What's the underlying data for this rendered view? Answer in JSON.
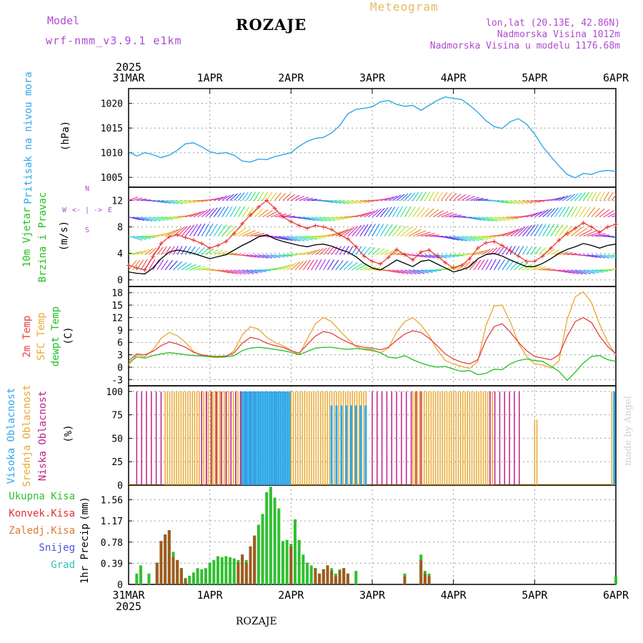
{
  "header": {
    "model_label": "Model",
    "model_run": "wrf-nmm_v3.9.1 e1km",
    "station": "ROZAJE",
    "product": "Meteogram",
    "lonlat": "lon,lat (20.13E, 42.86N)",
    "altitude": "Nadmorska Visina 1012m",
    "model_altitude": "Nadmorska Visina u modelu 1176.68m"
  },
  "watermark": "made by Angel",
  "footer": {
    "station": "ROZAJE"
  },
  "colors": {
    "pressure": "#2ea8e8",
    "wind_speed": "#000000",
    "wind_gust": "#e83030",
    "temp2m": "#e84040",
    "sfc_temp": "#e8a830",
    "dewpoint": "#20c020",
    "high_cloud": "#2ea8e8",
    "mid_cloud": "#e8a830",
    "low_cloud": "#c0208a",
    "total_precip": "#30c030",
    "convective_precip": "#a05a20",
    "snow": "#5050e0",
    "grad": "#30c0c0"
  },
  "chart_data": [
    {
      "type": "line",
      "name": "pressure",
      "xticks_top": [
        "31MAR",
        "1APR",
        "2APR",
        "3APR",
        "4APR",
        "5APR",
        "6APR"
      ],
      "year": "2025",
      "ylabel": "Pritisak na nivou mora",
      "unit": "(hPa)",
      "yticks": [
        "1005",
        "1010",
        "1015",
        "1020"
      ],
      "ylim": [
        1003,
        1023
      ],
      "x_days": [
        0,
        0.1,
        0.2,
        0.3,
        0.4,
        0.5,
        0.6,
        0.7,
        0.8,
        0.9,
        1.0,
        1.1,
        1.2,
        1.3,
        1.4,
        1.5,
        1.6,
        1.7,
        1.8,
        1.9,
        2.0,
        2.1,
        2.2,
        2.3,
        2.4,
        2.5,
        2.6,
        2.7,
        2.8,
        2.9,
        3.0,
        3.1,
        3.2,
        3.3,
        3.4,
        3.5,
        3.6,
        3.7,
        3.8,
        3.9,
        4.0,
        4.1,
        4.2,
        4.3,
        4.4,
        4.5,
        4.6,
        4.7,
        4.8,
        4.9,
        5.0,
        5.1,
        5.2,
        5.3,
        5.4,
        5.5,
        5.6,
        5.7,
        5.8,
        5.9,
        6.0
      ],
      "values": [
        1010.2,
        1009.3,
        1010.0,
        1009.6,
        1009.0,
        1009.5,
        1010.5,
        1011.8,
        1012.0,
        1011.2,
        1010.2,
        1009.8,
        1010.0,
        1009.5,
        1008.3,
        1008.1,
        1008.7,
        1008.6,
        1009.2,
        1009.6,
        1010.0,
        1011.3,
        1012.3,
        1012.9,
        1013.1,
        1014.0,
        1015.5,
        1017.9,
        1018.8,
        1019.0,
        1019.3,
        1020.3,
        1020.6,
        1019.8,
        1019.4,
        1019.6,
        1018.6,
        1019.6,
        1020.6,
        1021.3,
        1021.0,
        1020.8,
        1019.6,
        1018.2,
        1016.5,
        1015.3,
        1014.9,
        1016.3,
        1016.9,
        1015.8,
        1013.8,
        1011.2,
        1009.2,
        1007.3,
        1005.6,
        1004.9,
        1005.8,
        1005.6,
        1006.2,
        1006.4,
        1006.2
      ]
    },
    {
      "type": "line",
      "name": "wind",
      "ylabel": "10m Vjetar Brzina i Pravac",
      "unit": "(m/s)",
      "compass": "N / W E / S",
      "yticks": [
        "0",
        "4",
        "8",
        "12"
      ],
      "ylim": [
        -1,
        14
      ],
      "x_days": [
        0,
        0.1,
        0.2,
        0.3,
        0.4,
        0.5,
        0.6,
        0.7,
        0.8,
        0.9,
        1.0,
        1.1,
        1.2,
        1.3,
        1.4,
        1.5,
        1.6,
        1.7,
        1.8,
        1.9,
        2.0,
        2.1,
        2.2,
        2.3,
        2.4,
        2.5,
        2.6,
        2.7,
        2.8,
        2.9,
        3.0,
        3.1,
        3.2,
        3.3,
        3.4,
        3.5,
        3.6,
        3.7,
        3.8,
        3.9,
        4.0,
        4.1,
        4.2,
        4.3,
        4.4,
        4.5,
        4.6,
        4.7,
        4.8,
        4.9,
        5.0,
        5.1,
        5.2,
        5.3,
        5.4,
        5.5,
        5.6,
        5.7,
        5.8,
        5.9,
        6.0
      ],
      "series": [
        {
          "name": "speed",
          "values": [
            1.2,
            1.0,
            0.9,
            1.8,
            3.2,
            4.2,
            4.5,
            4.3,
            4.0,
            3.6,
            3.2,
            3.5,
            3.8,
            4.5,
            5.2,
            5.8,
            6.5,
            6.8,
            6.2,
            5.8,
            5.5,
            5.2,
            5.0,
            5.3,
            5.4,
            5.1,
            4.6,
            4.2,
            3.5,
            2.5,
            1.8,
            1.5,
            2.2,
            3.0,
            2.5,
            2.0,
            2.8,
            3.0,
            2.4,
            1.8,
            1.2,
            1.5,
            2.0,
            3.2,
            3.8,
            4.0,
            3.6,
            3.0,
            2.5,
            2.0,
            2.0,
            2.5,
            3.2,
            4.0,
            4.6,
            5.0,
            5.5,
            5.2,
            4.8,
            5.2,
            5.4
          ]
        },
        {
          "name": "gust",
          "values": [
            2.2,
            1.8,
            1.5,
            3.5,
            5.5,
            6.5,
            6.8,
            6.4,
            6.0,
            5.5,
            4.8,
            5.2,
            5.8,
            7.0,
            8.5,
            9.8,
            11.0,
            12.0,
            10.8,
            9.5,
            8.8,
            8.2,
            7.8,
            8.2,
            8.0,
            7.6,
            6.8,
            6.2,
            5.0,
            3.6,
            2.8,
            2.4,
            3.4,
            4.6,
            3.8,
            3.0,
            4.2,
            4.5,
            3.6,
            2.6,
            1.8,
            2.2,
            3.2,
            4.8,
            5.6,
            5.8,
            5.2,
            4.4,
            3.6,
            2.8,
            2.8,
            3.6,
            4.8,
            6.0,
            7.0,
            7.8,
            8.6,
            8.0,
            7.2,
            8.0,
            8.4
          ]
        }
      ],
      "barb_levels_ms": [
        12,
        9.5,
        6.6,
        3.8,
        1.5
      ]
    },
    {
      "type": "line",
      "name": "temperature",
      "ylabel": [
        "2m Temp",
        "SFC Temp",
        "dewpt Temp"
      ],
      "unit": "(C)",
      "yticks": [
        "-3",
        "0",
        "3",
        "6",
        "9",
        "12",
        "15",
        "18"
      ],
      "ylim": [
        -4.5,
        19.5
      ],
      "x_days": [
        0,
        0.1,
        0.2,
        0.3,
        0.4,
        0.5,
        0.6,
        0.7,
        0.8,
        0.9,
        1.0,
        1.1,
        1.2,
        1.3,
        1.4,
        1.5,
        1.6,
        1.7,
        1.8,
        1.9,
        2.0,
        2.1,
        2.2,
        2.3,
        2.4,
        2.5,
        2.6,
        2.7,
        2.8,
        2.9,
        3.0,
        3.1,
        3.2,
        3.3,
        3.4,
        3.5,
        3.6,
        3.7,
        3.8,
        3.9,
        4.0,
        4.1,
        4.2,
        4.3,
        4.4,
        4.5,
        4.6,
        4.7,
        4.8,
        4.9,
        5.0,
        5.1,
        5.2,
        5.3,
        5.4,
        5.5,
        5.6,
        5.7,
        5.8,
        5.9,
        6.0
      ],
      "series": [
        {
          "name": "2m Temp",
          "values": [
            1.5,
            3.2,
            3.0,
            3.8,
            5.2,
            6.1,
            5.6,
            4.8,
            3.6,
            3.0,
            2.7,
            2.6,
            2.7,
            3.5,
            5.8,
            7.2,
            6.8,
            5.8,
            5.2,
            4.8,
            4.0,
            3.4,
            5.5,
            7.5,
            8.6,
            8.2,
            7.0,
            6.0,
            5.2,
            4.8,
            4.6,
            4.2,
            4.8,
            6.5,
            8.0,
            8.8,
            8.4,
            7.0,
            5.2,
            3.2,
            2.0,
            1.2,
            0.8,
            1.8,
            6.5,
            9.8,
            10.5,
            8.5,
            6.0,
            4.0,
            2.6,
            2.2,
            1.8,
            3.0,
            7.5,
            11.0,
            12.0,
            10.8,
            7.5,
            5.0,
            3.2
          ]
        },
        {
          "name": "SFC Temp",
          "values": [
            0.5,
            3.0,
            2.5,
            4.2,
            7.0,
            8.4,
            7.6,
            6.0,
            3.8,
            2.8,
            2.4,
            2.3,
            2.5,
            4.0,
            7.8,
            9.8,
            9.2,
            7.2,
            6.0,
            5.2,
            4.1,
            3.0,
            6.8,
            10.5,
            12.0,
            11.0,
            8.8,
            6.8,
            5.0,
            4.2,
            4.0,
            3.5,
            4.6,
            8.5,
            11.0,
            12.0,
            10.2,
            7.6,
            4.2,
            1.6,
            0.8,
            0.2,
            -0.3,
            1.4,
            10.0,
            14.8,
            15.0,
            11.0,
            5.8,
            2.6,
            0.8,
            0.5,
            -0.2,
            1.5,
            11.5,
            17.0,
            18.2,
            15.6,
            10.4,
            6.0,
            3.0
          ]
        },
        {
          "name": "dewpt Temp",
          "values": [
            1.0,
            2.5,
            2.2,
            2.8,
            3.2,
            3.5,
            3.3,
            3.0,
            2.8,
            2.7,
            2.6,
            2.5,
            2.5,
            2.8,
            4.0,
            4.6,
            4.8,
            4.6,
            4.3,
            4.0,
            3.6,
            3.0,
            3.8,
            4.6,
            4.8,
            4.8,
            4.5,
            4.3,
            4.5,
            4.4,
            4.2,
            3.5,
            2.4,
            2.2,
            2.8,
            1.8,
            1.0,
            0.4,
            0.0,
            0.2,
            -0.5,
            -1.0,
            -0.8,
            -1.8,
            -1.5,
            -0.5,
            -0.6,
            0.8,
            1.6,
            2.0,
            1.6,
            1.4,
            0.2,
            -1.0,
            -3.2,
            -1.2,
            1.0,
            2.6,
            2.8,
            1.8,
            1.4
          ]
        }
      ]
    },
    {
      "type": "bar",
      "name": "clouds",
      "ylabel": [
        "Visoka Oblacnost",
        "Srednja Oblacnost",
        "Niska Oblacnost"
      ],
      "unit": "(%)",
      "yticks": [
        "0",
        "25",
        "50",
        "75",
        "100"
      ],
      "ylim": [
        0,
        106
      ],
      "periods": [
        {
          "layer": "low",
          "start": 0.1,
          "end": 0.45,
          "value": 100,
          "pattern": "sparse"
        },
        {
          "layer": "mid",
          "start": 0.45,
          "end": 1.4,
          "value": 100,
          "pattern": "dense"
        },
        {
          "layer": "low",
          "start": 0.9,
          "end": 1.8,
          "value": 100,
          "pattern": "sparse"
        },
        {
          "layer": "high",
          "start": 1.4,
          "end": 2.0,
          "value": 100,
          "pattern": "dense"
        },
        {
          "layer": "mid",
          "start": 2.0,
          "end": 2.95,
          "value": 100,
          "pattern": "dense"
        },
        {
          "layer": "high",
          "start": 2.5,
          "end": 2.95,
          "value": 85,
          "pattern": "sparse"
        },
        {
          "layer": "low",
          "start": 3.0,
          "end": 3.6,
          "value": 100,
          "pattern": "sparse"
        },
        {
          "layer": "mid",
          "start": 3.5,
          "end": 4.5,
          "value": 100,
          "pattern": "dense"
        },
        {
          "layer": "low",
          "start": 4.45,
          "end": 4.85,
          "value": 100,
          "pattern": "sparse"
        },
        {
          "layer": "mid",
          "start": 5.0,
          "end": 5.05,
          "value": 70,
          "pattern": "dense"
        },
        {
          "layer": "mid",
          "start": 5.95,
          "end": 6.0,
          "value": 100,
          "pattern": "dense"
        },
        {
          "layer": "high",
          "start": 5.98,
          "end": 6.0,
          "value": 100,
          "pattern": "dense"
        }
      ]
    },
    {
      "type": "bar",
      "name": "precipitation",
      "legend": [
        "Ukupna Kisa",
        "Konvek.Kisa",
        "Zaledj.Kisa",
        "Snijeg",
        "Grad"
      ],
      "ylabel": "1hr Precip",
      "unit": "(mm)",
      "yticks": [
        "0",
        "0.39",
        "0.78",
        "1.17",
        "1.56"
      ],
      "ylim": [
        0,
        1.83
      ],
      "xticks_bottom": [
        "31MAR",
        "1APR",
        "2APR",
        "3APR",
        "4APR",
        "5APR",
        "6APR"
      ],
      "year": "2025",
      "x_days": [
        0.1,
        0.15,
        0.25,
        0.35,
        0.4,
        0.45,
        0.5,
        0.55,
        0.6,
        0.65,
        0.7,
        0.75,
        0.8,
        0.85,
        0.9,
        0.95,
        1.0,
        1.05,
        1.1,
        1.15,
        1.2,
        1.25,
        1.3,
        1.35,
        1.4,
        1.45,
        1.5,
        1.55,
        1.6,
        1.65,
        1.7,
        1.75,
        1.8,
        1.85,
        1.9,
        1.95,
        2.0,
        2.05,
        2.1,
        2.15,
        2.2,
        2.25,
        2.3,
        2.35,
        2.4,
        2.45,
        2.5,
        2.55,
        2.6,
        2.65,
        2.7,
        2.8,
        3.4,
        3.6,
        3.65,
        3.7,
        6.0
      ],
      "total": [
        0.2,
        0.35,
        0.2,
        0.4,
        0.8,
        0.92,
        1.0,
        0.6,
        0.45,
        0.3,
        0.12,
        0.16,
        0.22,
        0.3,
        0.28,
        0.3,
        0.4,
        0.45,
        0.52,
        0.5,
        0.52,
        0.5,
        0.48,
        0.45,
        0.55,
        0.45,
        0.7,
        0.9,
        1.1,
        1.3,
        1.7,
        1.8,
        1.6,
        1.4,
        0.8,
        0.82,
        0.75,
        1.2,
        0.82,
        0.55,
        0.4,
        0.35,
        0.3,
        0.2,
        0.28,
        0.35,
        0.3,
        0.2,
        0.28,
        0.3,
        0.2,
        0.25,
        0.2,
        0.55,
        0.25,
        0.2,
        0.15
      ],
      "convective": [
        0.0,
        0.0,
        0.0,
        0.4,
        0.8,
        0.92,
        1.0,
        0.5,
        0.45,
        0.3,
        0.1,
        0.0,
        0.0,
        0.0,
        0.0,
        0.0,
        0.0,
        0.0,
        0.0,
        0.0,
        0.0,
        0.0,
        0.0,
        0.4,
        0.55,
        0.4,
        0.7,
        0.9,
        0.0,
        0.0,
        0.0,
        0.0,
        0.0,
        0.0,
        0.0,
        0.0,
        0.7,
        0.0,
        0.0,
        0.0,
        0.0,
        0.0,
        0.3,
        0.2,
        0.28,
        0.35,
        0.25,
        0.15,
        0.25,
        0.3,
        0.2,
        0.0,
        0.15,
        0.45,
        0.2,
        0.15,
        0.0
      ]
    }
  ]
}
